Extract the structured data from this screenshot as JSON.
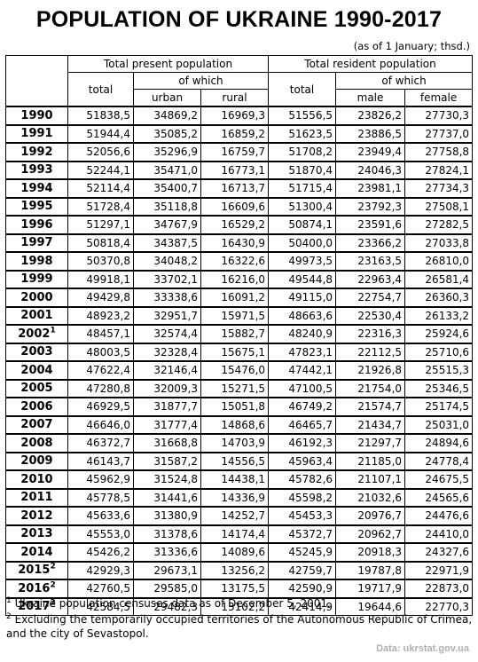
{
  "title": "POPULATION OF UKRAINE 1990-2017",
  "note": "(as of 1 January; thsd.)",
  "headers": {
    "present": "Total present population",
    "resident": "Total resident population",
    "total": "total",
    "of_which": "of which",
    "urban": "urban",
    "rural": "rural",
    "male": "male",
    "female": "female"
  },
  "rows": [
    {
      "year": "1990",
      "sup": "",
      "total": "51838,5",
      "urban": "34869,2",
      "rural": "16969,3",
      "res_total": "51556,5",
      "male": "23826,2",
      "female": "27730,3"
    },
    {
      "year": "1991",
      "sup": "",
      "total": "51944,4",
      "urban": "35085,2",
      "rural": "16859,2",
      "res_total": "51623,5",
      "male": "23886,5",
      "female": "27737,0"
    },
    {
      "year": "1992",
      "sup": "",
      "total": "52056,6",
      "urban": "35296,9",
      "rural": "16759,7",
      "res_total": "51708,2",
      "male": "23949,4",
      "female": "27758,8"
    },
    {
      "year": "1993",
      "sup": "",
      "total": "52244,1",
      "urban": "35471,0",
      "rural": "16773,1",
      "res_total": "51870,4",
      "male": "24046,3",
      "female": "27824,1"
    },
    {
      "year": "1994",
      "sup": "",
      "total": "52114,4",
      "urban": "35400,7",
      "rural": "16713,7",
      "res_total": "51715,4",
      "male": "23981,1",
      "female": "27734,3"
    },
    {
      "year": "1995",
      "sup": "",
      "total": "51728,4",
      "urban": "35118,8",
      "rural": "16609,6",
      "res_total": "51300,4",
      "male": "23792,3",
      "female": "27508,1"
    },
    {
      "year": "1996",
      "sup": "",
      "total": "51297,1",
      "urban": "34767,9",
      "rural": "16529,2",
      "res_total": "50874,1",
      "male": "23591,6",
      "female": "27282,5"
    },
    {
      "year": "1997",
      "sup": "",
      "total": "50818,4",
      "urban": "34387,5",
      "rural": "16430,9",
      "res_total": "50400,0",
      "male": "23366,2",
      "female": "27033,8"
    },
    {
      "year": "1998",
      "sup": "",
      "total": "50370,8",
      "urban": "34048,2",
      "rural": "16322,6",
      "res_total": "49973,5",
      "male": "23163,5",
      "female": "26810,0"
    },
    {
      "year": "1999",
      "sup": "",
      "total": "49918,1",
      "urban": "33702,1",
      "rural": "16216,0",
      "res_total": "49544,8",
      "male": "22963,4",
      "female": "26581,4"
    },
    {
      "year": "2000",
      "sup": "",
      "total": "49429,8",
      "urban": "33338,6",
      "rural": "16091,2",
      "res_total": "49115,0",
      "male": "22754,7",
      "female": "26360,3"
    },
    {
      "year": "2001",
      "sup": "",
      "total": "48923,2",
      "urban": "32951,7",
      "rural": "15971,5",
      "res_total": "48663,6",
      "male": "22530,4",
      "female": "26133,2"
    },
    {
      "year": "2002",
      "sup": "1",
      "total": "48457,1",
      "urban": "32574,4",
      "rural": "15882,7",
      "res_total": "48240,9",
      "male": "22316,3",
      "female": "25924,6"
    },
    {
      "year": "2003",
      "sup": "",
      "total": "48003,5",
      "urban": "32328,4",
      "rural": "15675,1",
      "res_total": "47823,1",
      "male": "22112,5",
      "female": "25710,6"
    },
    {
      "year": "2004",
      "sup": "",
      "total": "47622,4",
      "urban": "32146,4",
      "rural": "15476,0",
      "res_total": "47442,1",
      "male": "21926,8",
      "female": "25515,3"
    },
    {
      "year": "2005",
      "sup": "",
      "total": "47280,8",
      "urban": "32009,3",
      "rural": "15271,5",
      "res_total": "47100,5",
      "male": "21754,0",
      "female": "25346,5"
    },
    {
      "year": "2006",
      "sup": "",
      "total": "46929,5",
      "urban": "31877,7",
      "rural": "15051,8",
      "res_total": "46749,2",
      "male": "21574,7",
      "female": "25174,5"
    },
    {
      "year": "2007",
      "sup": "",
      "total": "46646,0",
      "urban": "31777,4",
      "rural": "14868,6",
      "res_total": "46465,7",
      "male": "21434,7",
      "female": "25031,0"
    },
    {
      "year": "2008",
      "sup": "",
      "total": "46372,7",
      "urban": "31668,8",
      "rural": "14703,9",
      "res_total": "46192,3",
      "male": "21297,7",
      "female": "24894,6"
    },
    {
      "year": "2009",
      "sup": "",
      "total": "46143,7",
      "urban": "31587,2",
      "rural": "14556,5",
      "res_total": "45963,4",
      "male": "21185,0",
      "female": "24778,4"
    },
    {
      "year": "2010",
      "sup": "",
      "total": "45962,9",
      "urban": "31524,8",
      "rural": "14438,1",
      "res_total": "45782,6",
      "male": "21107,1",
      "female": "24675,5"
    },
    {
      "year": "2011",
      "sup": "",
      "total": "45778,5",
      "urban": "31441,6",
      "rural": "14336,9",
      "res_total": "45598,2",
      "male": "21032,6",
      "female": "24565,6"
    },
    {
      "year": "2012",
      "sup": "",
      "total": "45633,6",
      "urban": "31380,9",
      "rural": "14252,7",
      "res_total": "45453,3",
      "male": "20976,7",
      "female": "24476,6"
    },
    {
      "year": "2013",
      "sup": "",
      "total": "45553,0",
      "urban": "31378,6",
      "rural": "14174,4",
      "res_total": "45372,7",
      "male": "20962,7",
      "female": "24410,0"
    },
    {
      "year": "2014",
      "sup": "",
      "total": "45426,2",
      "urban": "31336,6",
      "rural": "14089,6",
      "res_total": "45245,9",
      "male": "20918,3",
      "female": "24327,6"
    },
    {
      "year": "2015",
      "sup": "2",
      "total": "42929,3",
      "urban": "29673,1",
      "rural": "13256,2",
      "res_total": "42759,7",
      "male": "19787,8",
      "female": "22971,9"
    },
    {
      "year": "2016",
      "sup": "2",
      "total": "42760,5",
      "urban": "29585,0",
      "rural": "13175,5",
      "res_total": "42590,9",
      "male": "19717,9",
      "female": "22873,0"
    },
    {
      "year": "2017",
      "sup": "2",
      "total": "42584,5",
      "urban": "29482,3",
      "rural": "13102,2",
      "res_total": "42414,9",
      "male": "19644,6",
      "female": "22770,3"
    }
  ],
  "footnotes": [
    {
      "num": "1",
      "text": "Ukraine population censuses data as of December 5, 2001."
    },
    {
      "num": "2",
      "text": "Excluding the temporarily occupied territories of the Autonomous Republic of Crimea, and the city of Sevastopol."
    }
  ],
  "source": "Data: ukrstat.gov.ua"
}
